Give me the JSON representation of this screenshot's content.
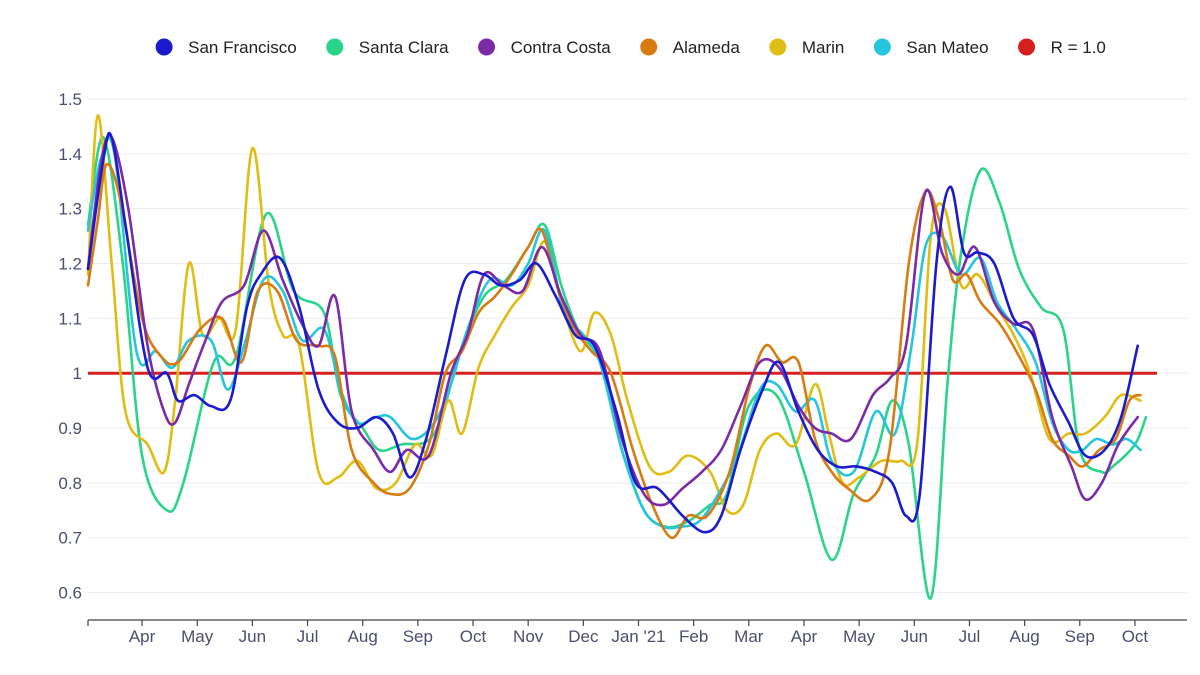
{
  "chart_data": {
    "type": "line",
    "title": "",
    "xlabel": "",
    "ylabel": "",
    "ylim": [
      0.55,
      1.52
    ],
    "y_ticks": [
      0.6,
      0.7,
      0.8,
      0.9,
      1,
      1.1,
      1.2,
      1.3,
      1.4,
      1.5
    ],
    "y_tick_labels": [
      "0.6",
      "0.7",
      "0.8",
      "0.9",
      "1",
      "1.1",
      "1.2",
      "1.3",
      "1.4",
      "1.5"
    ],
    "x_months": [
      0,
      1,
      2,
      3,
      4,
      5,
      6,
      7,
      8,
      9,
      10,
      11,
      12,
      13,
      14,
      15,
      16,
      17,
      18,
      19
    ],
    "x_tick_labels": [
      "Apr",
      "May",
      "Jun",
      "Jul",
      "Aug",
      "Sep",
      "Oct",
      "Nov",
      "Dec",
      "Jan '21",
      "Feb",
      "Mar",
      "Apr",
      "May",
      "Jun",
      "Jul",
      "Aug",
      "Sep",
      "Oct"
    ],
    "x_tick_positions": [
      1,
      2,
      3,
      4,
      5,
      6,
      7,
      8,
      9,
      10,
      11,
      12,
      13,
      14,
      15,
      16,
      17,
      18,
      19
    ],
    "x_range": [
      0.02,
      19.4
    ],
    "x_note": "x values are in months since Mar 1, 2020",
    "reference_line": {
      "name": "R = 1.0",
      "value": 1.0,
      "color": "#d62020"
    },
    "legend": [
      {
        "name": "San Francisco",
        "color": "#1b1bcc"
      },
      {
        "name": "Santa Clara",
        "color": "#2ad48a"
      },
      {
        "name": "Contra Costa",
        "color": "#7b2aa8"
      },
      {
        "name": "Alameda",
        "color": "#d77b12"
      },
      {
        "name": "Marin",
        "color": "#e0bd14"
      },
      {
        "name": "San Mateo",
        "color": "#25c6dd"
      },
      {
        "name": "R = 1.0",
        "color": "#d62020"
      }
    ],
    "series": [
      {
        "name": "Santa Clara",
        "color": "#2ad48a",
        "x": [
          0.02,
          0.3,
          0.65,
          1.0,
          1.45,
          1.75,
          2.3,
          2.7,
          3.25,
          3.75,
          4.3,
          4.6,
          5.0,
          5.3,
          5.7,
          6.3,
          6.8,
          7.2,
          7.6,
          8.0,
          8.3,
          8.6,
          8.9,
          9.3,
          9.7,
          10.1,
          10.5,
          10.9,
          11.3,
          11.6,
          12.0,
          12.5,
          13.0,
          13.5,
          13.9,
          14.3,
          14.6,
          14.9,
          15.3,
          15.6,
          15.85,
          16.2,
          16.55,
          16.9,
          17.3,
          17.7,
          18.0,
          18.4,
          18.6,
          19.0,
          19.2
        ],
        "y": [
          1.27,
          1.43,
          1.2,
          0.85,
          0.75,
          0.8,
          1.02,
          1.03,
          1.29,
          1.15,
          1.11,
          0.96,
          0.9,
          0.86,
          0.87,
          0.89,
          1.05,
          1.14,
          1.17,
          1.23,
          1.27,
          1.16,
          1.08,
          1.02,
          0.86,
          0.75,
          0.72,
          0.73,
          0.76,
          0.78,
          0.94,
          0.96,
          0.82,
          0.66,
          0.78,
          0.85,
          0.95,
          0.87,
          0.59,
          0.98,
          1.22,
          1.37,
          1.31,
          1.19,
          1.12,
          1.08,
          0.86,
          0.82,
          0.83,
          0.87,
          0.92
        ]
      },
      {
        "name": "Marin",
        "color": "#e0bd14",
        "x": [
          0.02,
          0.2,
          0.45,
          0.7,
          1.1,
          1.4,
          1.6,
          1.85,
          2.1,
          2.4,
          2.7,
          3.0,
          3.3,
          3.55,
          3.85,
          4.2,
          4.55,
          4.9,
          5.25,
          5.6,
          5.95,
          6.25,
          6.55,
          6.8,
          7.1,
          7.4,
          7.7,
          8.0,
          8.3,
          8.6,
          8.95,
          9.2,
          9.5,
          9.8,
          10.2,
          10.55,
          10.9,
          11.3,
          11.6,
          11.9,
          12.2,
          12.5,
          12.85,
          13.2,
          13.45,
          13.7,
          14.0,
          14.4,
          14.75,
          15.05,
          15.3,
          15.55,
          15.85,
          16.15,
          16.5,
          16.8,
          17.1,
          17.45,
          17.8,
          18.1,
          18.45,
          18.75,
          19.1
        ],
        "y": [
          1.18,
          1.47,
          1.2,
          0.93,
          0.87,
          0.82,
          0.95,
          1.2,
          1.07,
          1.1,
          1.08,
          1.41,
          1.16,
          1.07,
          1.05,
          0.82,
          0.81,
          0.84,
          0.79,
          0.8,
          0.87,
          0.85,
          0.95,
          0.89,
          1.01,
          1.07,
          1.12,
          1.16,
          1.24,
          1.13,
          1.04,
          1.11,
          1.07,
          0.95,
          0.83,
          0.82,
          0.85,
          0.82,
          0.75,
          0.76,
          0.86,
          0.89,
          0.87,
          0.98,
          0.89,
          0.8,
          0.81,
          0.84,
          0.84,
          0.87,
          1.25,
          1.3,
          1.16,
          1.18,
          1.12,
          1.07,
          1.0,
          0.88,
          0.89,
          0.89,
          0.92,
          0.96,
          0.95
        ]
      },
      {
        "name": "San Mateo",
        "color": "#25c6dd",
        "x": [
          0.02,
          0.25,
          0.5,
          0.9,
          1.25,
          1.55,
          1.85,
          2.25,
          2.55,
          2.85,
          3.2,
          3.55,
          3.9,
          4.3,
          4.6,
          4.9,
          5.25,
          5.5,
          5.9,
          6.3,
          6.6,
          6.9,
          7.3,
          7.7,
          8.0,
          8.3,
          8.65,
          9.0,
          9.3,
          9.7,
          10.1,
          10.45,
          10.75,
          11.1,
          11.45,
          11.8,
          12.2,
          12.5,
          12.85,
          13.2,
          13.5,
          13.9,
          14.3,
          14.65,
          14.95,
          15.2,
          15.5,
          15.85,
          16.2,
          16.5,
          16.85,
          17.2,
          17.5,
          17.8,
          18.05,
          18.3,
          18.6,
          18.85,
          19.1
        ],
        "y": [
          1.26,
          1.39,
          1.4,
          1.04,
          1.04,
          1.01,
          1.06,
          1.06,
          0.97,
          1.05,
          1.17,
          1.15,
          1.06,
          1.08,
          0.97,
          0.91,
          0.92,
          0.92,
          0.88,
          0.91,
          0.98,
          1.08,
          1.17,
          1.16,
          1.2,
          1.26,
          1.11,
          1.07,
          1.02,
          0.86,
          0.75,
          0.72,
          0.72,
          0.73,
          0.78,
          0.85,
          0.97,
          0.98,
          0.93,
          0.95,
          0.84,
          0.82,
          0.93,
          0.89,
          1.05,
          1.23,
          1.25,
          1.18,
          1.21,
          1.13,
          1.08,
          1.02,
          0.91,
          0.86,
          0.86,
          0.88,
          0.87,
          0.88,
          0.86
        ]
      },
      {
        "name": "Alameda",
        "color": "#d77b12",
        "x": [
          0.02,
          0.2,
          0.35,
          0.6,
          1.0,
          1.35,
          1.65,
          2.05,
          2.45,
          2.8,
          3.1,
          3.45,
          3.8,
          4.2,
          4.5,
          4.8,
          5.2,
          5.5,
          5.85,
          6.2,
          6.5,
          6.8,
          7.1,
          7.4,
          7.7,
          8.0,
          8.25,
          8.55,
          8.85,
          9.15,
          9.5,
          9.9,
          10.25,
          10.6,
          10.9,
          11.25,
          11.65,
          12.0,
          12.3,
          12.6,
          12.9,
          13.2,
          13.5,
          13.8,
          14.2,
          14.55,
          14.9,
          15.2,
          15.45,
          15.7,
          15.95,
          16.2,
          16.55,
          16.85,
          17.2,
          17.5,
          17.8,
          18.05,
          18.35,
          18.65,
          18.9,
          19.1
        ],
        "y": [
          1.16,
          1.28,
          1.38,
          1.32,
          1.1,
          1.03,
          1.02,
          1.08,
          1.1,
          1.02,
          1.15,
          1.15,
          1.06,
          1.05,
          1.03,
          0.86,
          0.8,
          0.78,
          0.79,
          0.87,
          1.0,
          1.04,
          1.11,
          1.14,
          1.18,
          1.23,
          1.26,
          1.15,
          1.08,
          1.04,
          1.0,
          0.86,
          0.76,
          0.7,
          0.74,
          0.74,
          0.82,
          0.97,
          1.05,
          1.02,
          1.02,
          0.88,
          0.82,
          0.79,
          0.77,
          0.86,
          1.2,
          1.33,
          1.28,
          1.17,
          1.18,
          1.13,
          1.09,
          1.04,
          0.97,
          0.88,
          0.85,
          0.83,
          0.86,
          0.88,
          0.95,
          0.96
        ]
      },
      {
        "name": "Contra Costa",
        "color": "#7b2aa8",
        "x": [
          0.02,
          0.25,
          0.45,
          0.75,
          1.1,
          1.4,
          1.6,
          1.85,
          2.15,
          2.45,
          2.85,
          3.2,
          3.55,
          3.9,
          4.2,
          4.5,
          4.8,
          5.2,
          5.5,
          5.8,
          6.2,
          6.6,
          6.9,
          7.2,
          7.55,
          7.9,
          8.25,
          8.6,
          8.95,
          9.3,
          9.7,
          10.1,
          10.45,
          10.8,
          11.15,
          11.5,
          11.85,
          12.2,
          12.55,
          12.9,
          13.2,
          13.5,
          13.85,
          14.25,
          14.55,
          14.85,
          15.2,
          15.5,
          15.8,
          16.1,
          16.45,
          16.8,
          17.15,
          17.5,
          17.85,
          18.1,
          18.4,
          18.7,
          19.05
        ],
        "y": [
          1.19,
          1.38,
          1.43,
          1.3,
          1.05,
          0.93,
          0.91,
          0.98,
          1.06,
          1.13,
          1.16,
          1.26,
          1.17,
          1.09,
          1.05,
          1.14,
          0.93,
          0.86,
          0.82,
          0.86,
          0.85,
          1.0,
          1.07,
          1.18,
          1.16,
          1.15,
          1.23,
          1.14,
          1.07,
          1.04,
          0.88,
          0.78,
          0.76,
          0.79,
          0.82,
          0.86,
          0.94,
          1.02,
          1.01,
          0.94,
          0.9,
          0.89,
          0.88,
          0.96,
          0.99,
          1.05,
          1.33,
          1.22,
          1.18,
          1.23,
          1.13,
          1.09,
          1.08,
          0.92,
          0.83,
          0.77,
          0.8,
          0.87,
          0.92
        ]
      },
      {
        "name": "San Francisco",
        "color": "#1b1bcc",
        "x": [
          0.02,
          0.3,
          0.45,
          0.7,
          1.1,
          1.45,
          1.65,
          1.95,
          2.25,
          2.6,
          2.9,
          3.15,
          3.5,
          3.85,
          4.2,
          4.55,
          4.9,
          5.25,
          5.55,
          5.85,
          6.15,
          6.5,
          6.85,
          7.2,
          7.5,
          7.85,
          8.15,
          8.5,
          8.85,
          9.2,
          9.6,
          9.95,
          10.35,
          10.8,
          11.2,
          11.5,
          11.85,
          12.25,
          12.55,
          12.9,
          13.25,
          13.6,
          13.95,
          14.3,
          14.6,
          14.85,
          15.1,
          15.4,
          15.65,
          15.9,
          16.15,
          16.45,
          16.8,
          17.15,
          17.45,
          17.8,
          18.1,
          18.45,
          18.75,
          19.05
        ],
        "y": [
          1.19,
          1.39,
          1.43,
          1.27,
          1.01,
          1.0,
          0.95,
          0.96,
          0.94,
          0.95,
          1.12,
          1.18,
          1.21,
          1.12,
          0.97,
          0.91,
          0.9,
          0.92,
          0.89,
          0.81,
          0.88,
          1.03,
          1.17,
          1.18,
          1.16,
          1.17,
          1.2,
          1.14,
          1.07,
          1.05,
          0.93,
          0.8,
          0.79,
          0.74,
          0.71,
          0.74,
          0.86,
          0.97,
          1.02,
          0.93,
          0.86,
          0.83,
          0.83,
          0.82,
          0.8,
          0.74,
          0.78,
          1.2,
          1.34,
          1.22,
          1.22,
          1.2,
          1.1,
          1.07,
          0.98,
          0.91,
          0.85,
          0.86,
          0.92,
          1.05
        ]
      }
    ]
  }
}
